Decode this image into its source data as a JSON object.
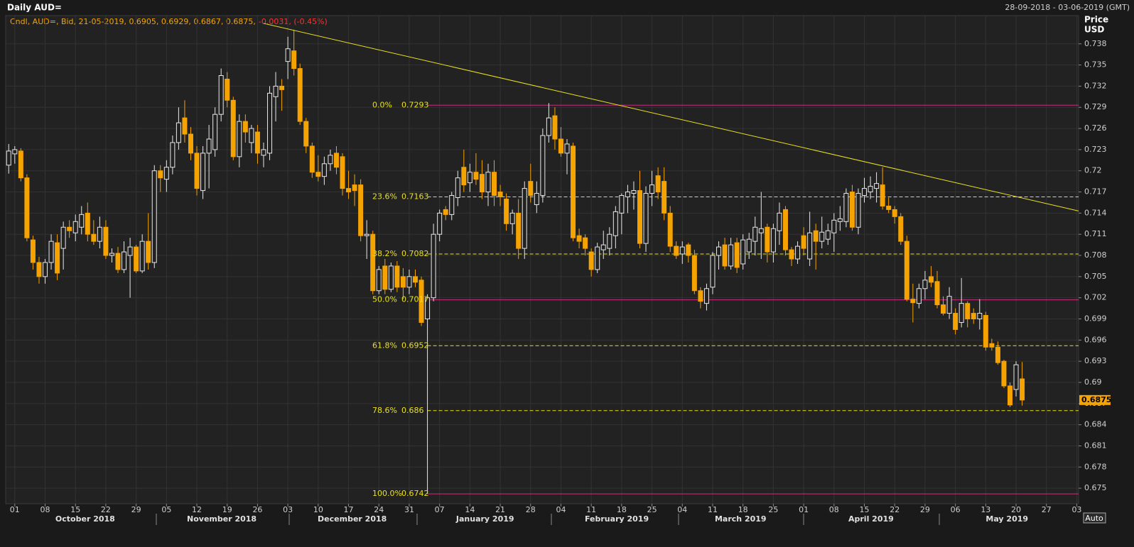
{
  "chart_data": {
    "type": "candlestick",
    "title": "Daily AUD=",
    "subtitle": "28-09-2018 - 03-06-2019 (GMT)",
    "info": "Cndl, AUD=, Bid, 21-05-2019, 0.6905, 0.6929, 0.6867, 0.6875,",
    "info_change": "-0.0031, (-0.45%)",
    "ylabel": [
      "Price",
      "USD"
    ],
    "button": "Auto",
    "up_color": "#e8e8e8",
    "down_color": "#f5a300",
    "grid": true,
    "ylim": [
      0.6728,
      0.742
    ],
    "yticks": [
      0.675,
      0.678,
      0.681,
      0.684,
      0.687,
      0.69,
      0.693,
      0.696,
      0.699,
      0.702,
      0.705,
      0.708,
      0.711,
      0.714,
      0.717,
      0.72,
      0.723,
      0.726,
      0.729,
      0.732,
      0.735,
      0.738
    ],
    "xlim": [
      -0.5,
      176.3
    ],
    "xticks": [
      {
        "value": 1,
        "label": "01"
      },
      {
        "value": 6,
        "label": "08"
      },
      {
        "value": 11,
        "label": "15"
      },
      {
        "value": 16,
        "label": "22"
      },
      {
        "value": 21,
        "label": "29"
      },
      {
        "value": 26,
        "label": "05"
      },
      {
        "value": 31,
        "label": "12"
      },
      {
        "value": 36,
        "label": "19"
      },
      {
        "value": 41,
        "label": "26"
      },
      {
        "value": 46,
        "label": "03"
      },
      {
        "value": 51,
        "label": "10"
      },
      {
        "value": 56,
        "label": "17"
      },
      {
        "value": 61,
        "label": "24"
      },
      {
        "value": 66,
        "label": "31"
      },
      {
        "value": 71,
        "label": "07"
      },
      {
        "value": 76,
        "label": "14"
      },
      {
        "value": 81,
        "label": "21"
      },
      {
        "value": 86,
        "label": "28"
      },
      {
        "value": 91,
        "label": "04"
      },
      {
        "value": 96,
        "label": "11"
      },
      {
        "value": 101,
        "label": "18"
      },
      {
        "value": 106,
        "label": "25"
      },
      {
        "value": 111,
        "label": "04"
      },
      {
        "value": 116,
        "label": "11"
      },
      {
        "value": 121,
        "label": "18"
      },
      {
        "value": 126,
        "label": "25"
      },
      {
        "value": 131,
        "label": "01"
      },
      {
        "value": 136,
        "label": "08"
      },
      {
        "value": 141,
        "label": "15"
      },
      {
        "value": 146,
        "label": "22"
      },
      {
        "value": 151,
        "label": "29"
      },
      {
        "value": 156,
        "label": "06"
      },
      {
        "value": 161,
        "label": "13"
      },
      {
        "value": 166,
        "label": "20"
      },
      {
        "value": 171,
        "label": "27"
      },
      {
        "value": 176,
        "label": "03"
      }
    ],
    "month_ticks": [
      {
        "value": 12.6,
        "label": "October 2018"
      },
      {
        "value": 35.1,
        "label": "November 2018"
      },
      {
        "value": 56.6,
        "label": "December 2018"
      },
      {
        "value": 78.5,
        "label": "January 2019"
      },
      {
        "value": 100.2,
        "label": "February 2019"
      },
      {
        "value": 120.6,
        "label": "March 2019"
      },
      {
        "value": 142.1,
        "label": "April 2019"
      },
      {
        "value": 164.5,
        "label": "May 2019"
      }
    ],
    "open": [
      0.7208,
      0.7224,
      0.7228,
      0.719,
      0.7102,
      0.707,
      0.705,
      0.707,
      0.7098,
      0.709,
      0.712,
      0.7112,
      0.712,
      0.714,
      0.711,
      0.71,
      0.712,
      0.708,
      0.7083,
      0.706,
      0.708,
      0.7092,
      0.7058,
      0.71,
      0.707,
      0.72,
      0.7188,
      0.7205,
      0.724,
      0.7275,
      0.7252,
      0.7225,
      0.7172,
      0.7225,
      0.723,
      0.728,
      0.733,
      0.73,
      0.722,
      0.727,
      0.724,
      0.7255,
      0.7222,
      0.7225,
      0.7305,
      0.732,
      0.7355,
      0.737,
      0.7345,
      0.727,
      0.7235,
      0.7198,
      0.7192,
      0.721,
      0.7225,
      0.722,
      0.7175,
      0.718,
      0.718,
      0.7108,
      0.711,
      0.703,
      0.7065,
      0.7032,
      0.7065,
      0.705,
      0.7035,
      0.705,
      0.7045,
      0.699,
      0.702,
      0.711,
      0.7145,
      0.7138,
      0.7162,
      0.7205,
      0.7183,
      0.7198,
      0.7195,
      0.717,
      0.7198,
      0.717,
      0.716,
      0.7125,
      0.714,
      0.709,
      0.7185,
      0.7152,
      0.7165,
      0.725,
      0.7278,
      0.7245,
      0.7225,
      0.7235,
      0.7108,
      0.7105,
      0.7085,
      0.706,
      0.7088,
      0.709,
      0.7108,
      0.714,
      0.7163,
      0.7168,
      0.7172,
      0.7097,
      0.7168,
      0.7193,
      0.7185,
      0.714,
      0.7093,
      0.7082,
      0.7095,
      0.708,
      0.703,
      0.7012,
      0.7035,
      0.708,
      0.7095,
      0.7065,
      0.7098,
      0.7068,
      0.7085,
      0.71,
      0.7112,
      0.712,
      0.7085,
      0.7115,
      0.7145,
      0.7088,
      0.7075,
      0.7108,
      0.7075,
      0.7115,
      0.71,
      0.7103,
      0.7112,
      0.7128,
      0.7128,
      0.717,
      0.712,
      0.7165,
      0.717,
      0.7175,
      0.718,
      0.715,
      0.7145,
      0.7135,
      0.71,
      0.7018,
      0.7012,
      0.7033,
      0.705,
      0.7043,
      0.701,
      0.6998,
      0.6998,
      0.6985,
      0.7012,
      0.6998,
      0.699,
      0.6995,
      0.6955,
      0.695,
      0.693,
      0.6895,
      0.689,
      0.6905
    ],
    "high": [
      0.7238,
      0.7235,
      0.7232,
      0.7195,
      0.7108,
      0.7078,
      0.7075,
      0.711,
      0.711,
      0.7128,
      0.713,
      0.7138,
      0.715,
      0.7155,
      0.713,
      0.7135,
      0.713,
      0.709,
      0.7092,
      0.71,
      0.7105,
      0.7095,
      0.711,
      0.714,
      0.7208,
      0.7208,
      0.7215,
      0.725,
      0.729,
      0.73,
      0.7262,
      0.7235,
      0.7235,
      0.7265,
      0.729,
      0.7345,
      0.734,
      0.7305,
      0.728,
      0.728,
      0.7265,
      0.7265,
      0.724,
      0.732,
      0.734,
      0.733,
      0.739,
      0.74,
      0.7352,
      0.7275,
      0.724,
      0.7222,
      0.722,
      0.723,
      0.7235,
      0.7225,
      0.72,
      0.7195,
      0.7188,
      0.713,
      0.7115,
      0.7065,
      0.7075,
      0.707,
      0.7072,
      0.7062,
      0.706,
      0.706,
      0.705,
      0.7025,
      0.7125,
      0.7145,
      0.715,
      0.717,
      0.72,
      0.723,
      0.721,
      0.7225,
      0.7215,
      0.721,
      0.7215,
      0.718,
      0.7168,
      0.7145,
      0.716,
      0.7185,
      0.721,
      0.7185,
      0.726,
      0.7296,
      0.729,
      0.7262,
      0.7245,
      0.724,
      0.7118,
      0.711,
      0.709,
      0.7098,
      0.7115,
      0.712,
      0.715,
      0.7168,
      0.718,
      0.7185,
      0.72,
      0.7178,
      0.72,
      0.7205,
      0.7205,
      0.715,
      0.71,
      0.71,
      0.7098,
      0.7088,
      0.7035,
      0.704,
      0.7085,
      0.71,
      0.7105,
      0.7105,
      0.7105,
      0.711,
      0.7112,
      0.7135,
      0.717,
      0.7125,
      0.7125,
      0.7155,
      0.715,
      0.7092,
      0.71,
      0.712,
      0.7142,
      0.7125,
      0.7135,
      0.7125,
      0.714,
      0.715,
      0.7175,
      0.718,
      0.7175,
      0.719,
      0.7192,
      0.7198,
      0.7205,
      0.7162,
      0.715,
      0.714,
      0.7108,
      0.704,
      0.704,
      0.7058,
      0.7065,
      0.7058,
      0.7022,
      0.7035,
      0.7005,
      0.7048,
      0.7015,
      0.7005,
      0.7018,
      0.7,
      0.6962,
      0.6958,
      0.6932,
      0.69,
      0.693,
      0.6929
    ],
    "low": [
      0.7196,
      0.721,
      0.7185,
      0.71,
      0.706,
      0.704,
      0.704,
      0.706,
      0.7045,
      0.706,
      0.7105,
      0.71,
      0.711,
      0.71,
      0.7095,
      0.709,
      0.7075,
      0.707,
      0.7055,
      0.7055,
      0.702,
      0.7055,
      0.7055,
      0.706,
      0.7062,
      0.717,
      0.717,
      0.7195,
      0.723,
      0.724,
      0.7215,
      0.7165,
      0.716,
      0.7175,
      0.722,
      0.727,
      0.729,
      0.7215,
      0.7205,
      0.724,
      0.7225,
      0.721,
      0.7205,
      0.7215,
      0.727,
      0.7285,
      0.733,
      0.7335,
      0.7265,
      0.7225,
      0.719,
      0.7185,
      0.718,
      0.72,
      0.7195,
      0.7165,
      0.716,
      0.715,
      0.71,
      0.7075,
      0.7025,
      0.7025,
      0.7025,
      0.7028,
      0.7028,
      0.7018,
      0.7025,
      0.7035,
      0.698,
      0.6742,
      0.7015,
      0.71,
      0.713,
      0.713,
      0.715,
      0.717,
      0.717,
      0.718,
      0.716,
      0.715,
      0.715,
      0.715,
      0.7115,
      0.711,
      0.7075,
      0.7075,
      0.7155,
      0.714,
      0.7155,
      0.724,
      0.723,
      0.722,
      0.7195,
      0.71,
      0.709,
      0.708,
      0.705,
      0.7055,
      0.7075,
      0.708,
      0.709,
      0.711,
      0.714,
      0.7145,
      0.709,
      0.7085,
      0.715,
      0.716,
      0.713,
      0.7085,
      0.7075,
      0.7068,
      0.707,
      0.7025,
      0.7005,
      0.7002,
      0.7025,
      0.706,
      0.706,
      0.706,
      0.7055,
      0.706,
      0.7075,
      0.708,
      0.7075,
      0.707,
      0.707,
      0.7095,
      0.708,
      0.7065,
      0.7068,
      0.708,
      0.7065,
      0.706,
      0.709,
      0.7095,
      0.7085,
      0.7115,
      0.712,
      0.7115,
      0.711,
      0.7155,
      0.716,
      0.7155,
      0.7145,
      0.714,
      0.7125,
      0.7095,
      0.7015,
      0.6985,
      0.7005,
      0.7018,
      0.7035,
      0.7005,
      0.6995,
      0.699,
      0.6968,
      0.6978,
      0.6978,
      0.6983,
      0.6975,
      0.6945,
      0.6945,
      0.6925,
      0.6892,
      0.6865,
      0.688,
      0.6867
    ],
    "close": [
      0.7228,
      0.723,
      0.719,
      0.7105,
      0.707,
      0.705,
      0.707,
      0.71,
      0.7055,
      0.712,
      0.7115,
      0.7128,
      0.7138,
      0.711,
      0.71,
      0.712,
      0.708,
      0.7083,
      0.706,
      0.7085,
      0.7092,
      0.7058,
      0.71,
      0.707,
      0.72,
      0.719,
      0.7205,
      0.724,
      0.7268,
      0.7252,
      0.7225,
      0.7175,
      0.7225,
      0.7245,
      0.728,
      0.7335,
      0.73,
      0.722,
      0.727,
      0.7255,
      0.726,
      0.7225,
      0.723,
      0.731,
      0.732,
      0.7315,
      0.7373,
      0.7345,
      0.727,
      0.7235,
      0.7198,
      0.7192,
      0.721,
      0.7222,
      0.7205,
      0.7175,
      0.717,
      0.7172,
      0.7108,
      0.711,
      0.703,
      0.706,
      0.7032,
      0.7065,
      0.7035,
      0.7035,
      0.705,
      0.7042,
      0.6985,
      0.702,
      0.711,
      0.714,
      0.7138,
      0.7165,
      0.719,
      0.718,
      0.7198,
      0.7188,
      0.717,
      0.7198,
      0.7165,
      0.7163,
      0.7125,
      0.714,
      0.709,
      0.7175,
      0.7165,
      0.7168,
      0.725,
      0.7275,
      0.7245,
      0.7225,
      0.7238,
      0.7105,
      0.71,
      0.709,
      0.706,
      0.7092,
      0.7095,
      0.711,
      0.7142,
      0.7165,
      0.717,
      0.7172,
      0.7097,
      0.7168,
      0.718,
      0.717,
      0.714,
      0.7093,
      0.708,
      0.7092,
      0.708,
      0.703,
      0.7015,
      0.7033,
      0.708,
      0.7092,
      0.7065,
      0.7095,
      0.7063,
      0.7102,
      0.7103,
      0.712,
      0.7118,
      0.7085,
      0.7118,
      0.714,
      0.7088,
      0.7075,
      0.7093,
      0.709,
      0.7112,
      0.71,
      0.7113,
      0.7115,
      0.713,
      0.7132,
      0.7168,
      0.712,
      0.7168,
      0.7175,
      0.7178,
      0.7182,
      0.715,
      0.7145,
      0.7135,
      0.71,
      0.7018,
      0.7013,
      0.7033,
      0.7045,
      0.7042,
      0.701,
      0.6998,
      0.7022,
      0.6975,
      0.7012,
      0.699,
      0.699,
      0.6998,
      0.695,
      0.695,
      0.6928,
      0.6895,
      0.6868,
      0.6925,
      0.6875
    ],
    "fib_levels": [
      {
        "label": "0.0%",
        "value": 0.7293,
        "color": "#c8307a",
        "dash": false
      },
      {
        "label": "23.6%",
        "value": 0.7163,
        "color": "#e8e020",
        "dash": true
      },
      {
        "label": "38.2%",
        "value": 0.7082,
        "color": "#e8e020",
        "dash": true
      },
      {
        "label": "50.0%",
        "value": 0.7017,
        "color": "#c8307a",
        "dash": false
      },
      {
        "label": "61.8%",
        "value": 0.6952,
        "color": "#e8e020",
        "dash": true
      },
      {
        "label": "78.6%",
        "value": 0.686,
        "color": "#e8e020",
        "dash": true
      },
      {
        "label": "100.0%",
        "value": 0.6742,
        "color": "#c8307a",
        "dash": false
      }
    ],
    "trendline": {
      "x": [
        42,
        176.3
      ],
      "y": [
        0.7409,
        0.7143
      ],
      "color": "#e8e020"
    }
  }
}
